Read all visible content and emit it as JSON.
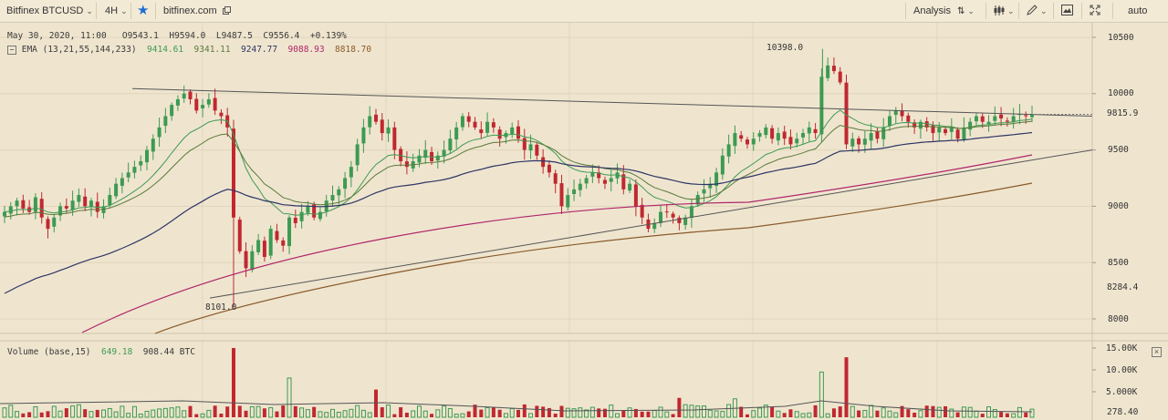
{
  "toolbar": {
    "symbol": "Bitfinex BTCUSD",
    "interval": "4H",
    "site": "bitfinex.com",
    "analysis": "Analysis",
    "auto": "auto"
  },
  "legend": {
    "date": "May 30, 2020, 11:00",
    "open": "O9543.1",
    "high": "H9594.0",
    "low": "L9487.5",
    "close": "C9556.4",
    "change": "+0.139%",
    "ema_label": "EMA (13,21,55,144,233)",
    "ema_values": [
      "9414.61",
      "9341.11",
      "9247.77",
      "9088.93",
      "8818.70"
    ]
  },
  "volume_legend": {
    "label": "Volume (base,15)",
    "v1": "649.18",
    "v2": "908.44 BTC"
  },
  "annotations": {
    "high": "10398.0",
    "low": "8101.0"
  },
  "price_axis": {
    "ticks": [
      "10500",
      "10000",
      "9500",
      "9000",
      "8500",
      "8000"
    ],
    "current": "9815.9",
    "marker": "8284.4"
  },
  "volume_axis": {
    "ticks": [
      "15.00K",
      "10.00K",
      "5.000K"
    ],
    "current": "278.40"
  },
  "colors": {
    "background": "#efe5cf",
    "up": "#3d9a52",
    "down": "#c0282f",
    "ema13": "#3d9a52",
    "ema21": "#5a7a3a",
    "ema55": "#2e3566",
    "ema144": "#b0266a",
    "ema233": "#8a5a2a",
    "trendline": "#555555",
    "accent_star": "#1f6fd1"
  },
  "chart_data": {
    "type": "candlestick",
    "pair": "BTCUSD",
    "interval": "4H",
    "ylim": [
      7900,
      10650
    ],
    "candles_note": "approximate price path (close per bar)",
    "close": [
      8950,
      9000,
      9050,
      8980,
      8950,
      9080,
      8900,
      8800,
      8900,
      9000,
      8980,
      9050,
      9100,
      9000,
      9050,
      8950,
      9000,
      9100,
      9200,
      9250,
      9300,
      9350,
      9400,
      9500,
      9600,
      9700,
      9800,
      9900,
      9950,
      10000,
      9950,
      9850,
      9900,
      9950,
      9850,
      9800,
      9700,
      8900,
      8600,
      8450,
      8600,
      8700,
      8550,
      8800,
      8700,
      8650,
      8900,
      8850,
      8950,
      9000,
      8900,
      8950,
      9050,
      9100,
      9150,
      9250,
      9350,
      9550,
      9700,
      9800,
      9750,
      9650,
      9700,
      9500,
      9400,
      9350,
      9400,
      9450,
      9500,
      9400,
      9450,
      9500,
      9600,
      9700,
      9800,
      9750,
      9700,
      9650,
      9750,
      9700,
      9600,
      9650,
      9700,
      9600,
      9500,
      9550,
      9450,
      9350,
      9300,
      9200,
      9000,
      9100,
      9150,
      9200,
      9250,
      9300,
      9250,
      9200,
      9250,
      9300,
      9150,
      9200,
      9000,
      8900,
      8800,
      8850,
      8950,
      8950,
      8900,
      8850,
      8900,
      9000,
      9100,
      9150,
      9200,
      9300,
      9450,
      9550,
      9650,
      9600,
      9550,
      9600,
      9650,
      9700,
      9600,
      9650,
      9600,
      9550,
      9600,
      9650,
      9700,
      9650,
      10150,
      10250,
      10200,
      10100,
      9550,
      9600,
      9550,
      9600,
      9650,
      9600,
      9700,
      9800,
      9850,
      9800,
      9750,
      9700,
      9750,
      9700,
      9650,
      9700,
      9650,
      9700,
      9600,
      9700,
      9750,
      9800,
      9750,
      9750,
      9800,
      9780,
      9750,
      9800,
      9820,
      9800,
      9816
    ]
  }
}
